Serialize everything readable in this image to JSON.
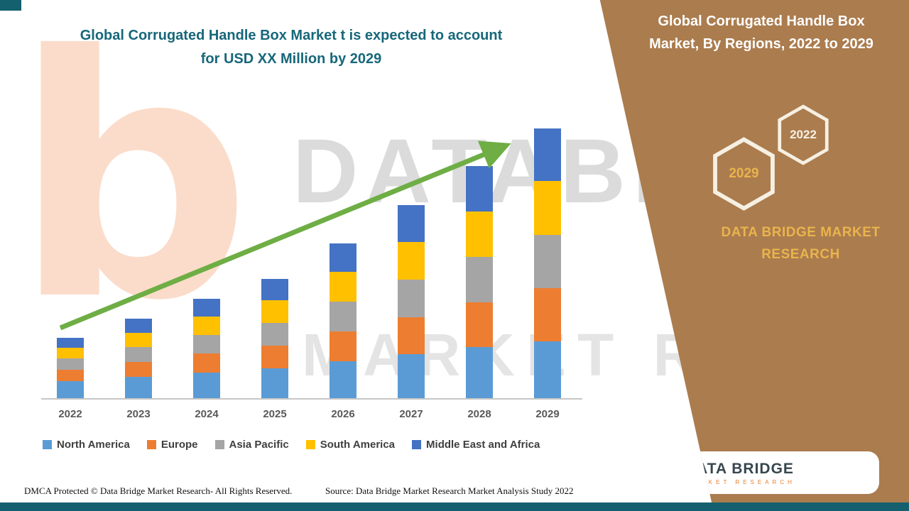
{
  "header": {
    "title_line1": "Global Corrugated Handle Box Market t is expected to account",
    "title_line2": "for USD XX Million by 2029"
  },
  "panel": {
    "title_line1": "Global Corrugated Handle Box",
    "title_line2": "Market, By Regions, 2022 to 2029",
    "hexagons": [
      {
        "label": "2022"
      },
      {
        "label": "2029"
      }
    ],
    "brand_line1": "DATA BRIDGE MARKET",
    "brand_line2": "RESEARCH",
    "logo": {
      "name": "DATA BRIDGE",
      "tagline": "MARKET RESEARCH"
    }
  },
  "watermark": {
    "logo_glyph": "b",
    "text_line1": "DATABRIDGE",
    "text_line2": "MARKET RESEARCH"
  },
  "footer": {
    "dmca": "DMCA Protected © Data Bridge Market Research- All Rights Reserved.",
    "source": "Source: Data Bridge Market Research Market Analysis Study 2022"
  },
  "colors": {
    "teal": "#14606E",
    "title_teal": "#17677A",
    "panel_brown": "#AB7C4E",
    "gold": "#E9B44C",
    "arrow_green": "#6EAE45"
  },
  "chart_data": {
    "type": "bar",
    "stacked": true,
    "title": "Global Corrugated Handle Box Market t is expected to account for USD XX Million by 2029",
    "xlabel": "",
    "ylabel": "",
    "y_axis_labeled": false,
    "units": "relative height (actual values shown as USD XX Million)",
    "legend_position": "bottom",
    "trend_arrow": true,
    "categories": [
      "2022",
      "2023",
      "2024",
      "2025",
      "2026",
      "2027",
      "2028",
      "2029"
    ],
    "series": [
      {
        "name": "North America",
        "color": "#5B9BD5",
        "values": [
          24,
          30,
          36,
          42,
          52,
          62,
          72,
          80
        ]
      },
      {
        "name": "Europe",
        "color": "#ED7D31",
        "values": [
          16,
          21,
          27,
          32,
          42,
          52,
          63,
          75
        ]
      },
      {
        "name": "Asia Pacific",
        "color": "#A5A5A5",
        "values": [
          16,
          21,
          26,
          32,
          42,
          53,
          64,
          75
        ]
      },
      {
        "name": "South America",
        "color": "#FFC000",
        "values": [
          15,
          20,
          26,
          32,
          42,
          53,
          64,
          76
        ]
      },
      {
        "name": "Middle East and Africa",
        "color": "#4472C4",
        "values": [
          14,
          20,
          25,
          30,
          40,
          52,
          64,
          74
        ]
      }
    ],
    "totals": [
      85,
      112,
      140,
      168,
      218,
      272,
      327,
      380
    ]
  }
}
